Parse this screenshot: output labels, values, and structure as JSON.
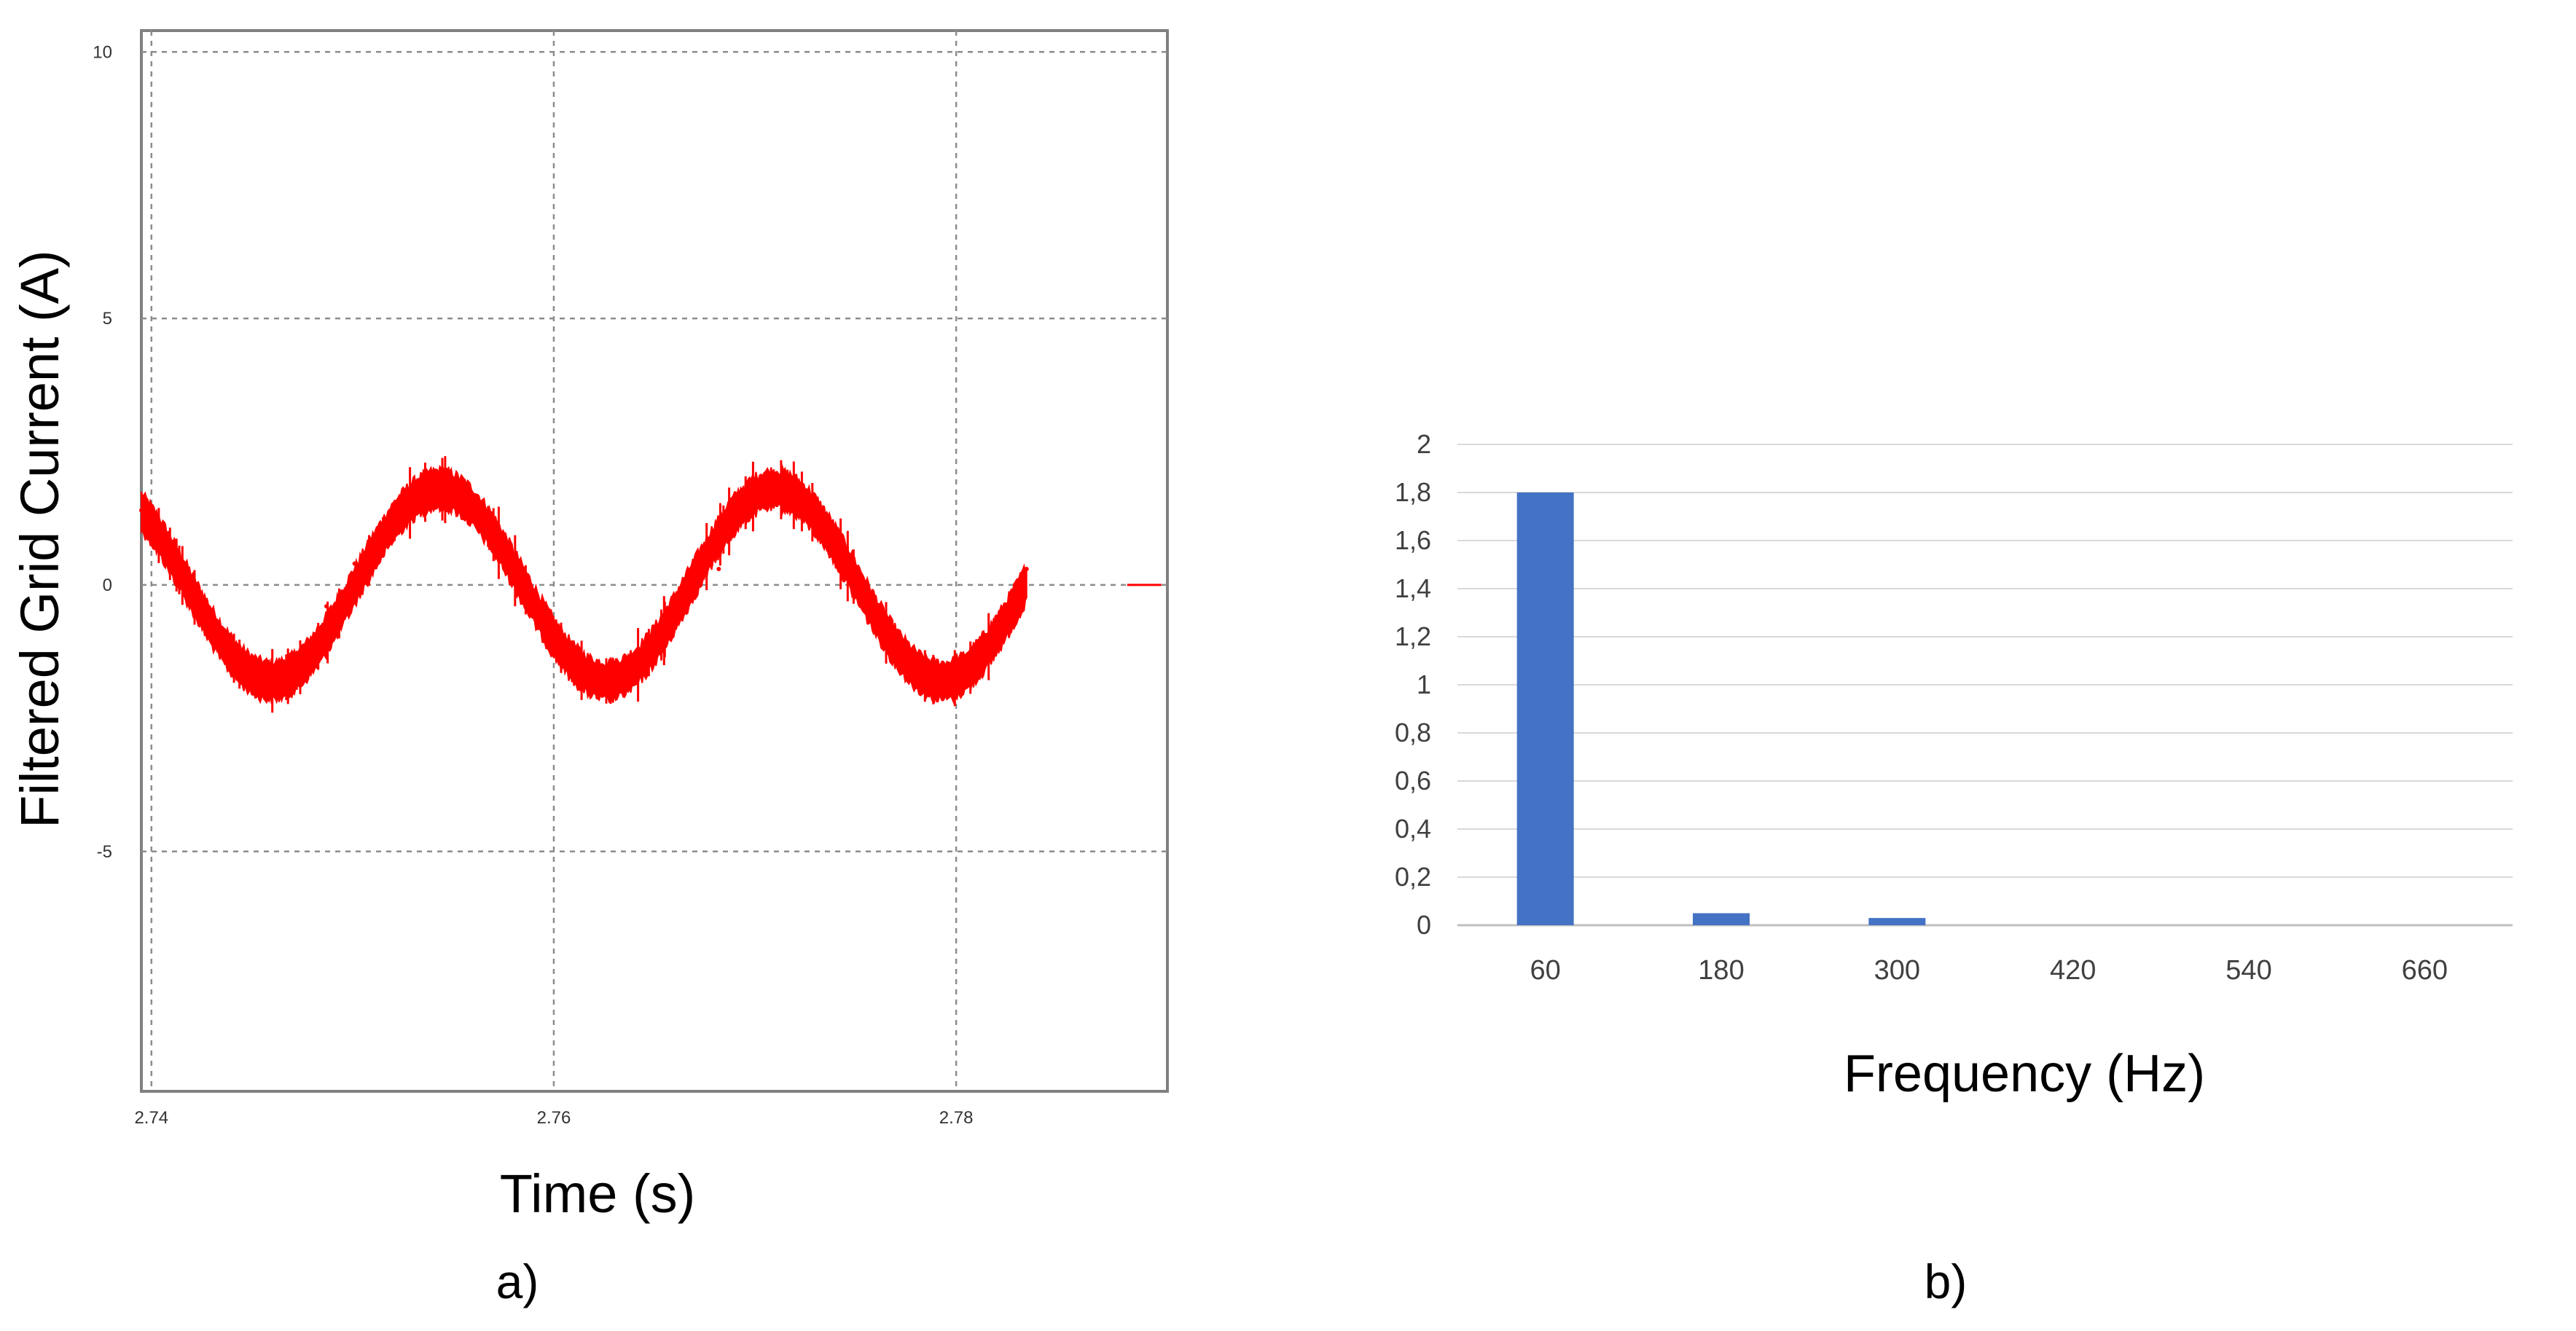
{
  "chart_data": [
    {
      "panel_label": "a)",
      "type": "line",
      "xlabel": "Time (s)",
      "ylabel": "Filtered Grid Current (A)",
      "xlim": [
        2.7395,
        2.7905
      ],
      "ylim": [
        -9.5,
        10.4
      ],
      "x_ticks": [
        2.74,
        2.76,
        2.78
      ],
      "x_tick_labels": [
        "2.74",
        "2.76",
        "2.78"
      ],
      "y_ticks": [
        10,
        5,
        0,
        -5
      ],
      "y_tick_labels": [
        "10",
        "5",
        "0",
        "-5"
      ],
      "grid": true,
      "grid_style": "dashed",
      "series": [
        {
          "color": "#ff0000",
          "waveform": "sine",
          "amplitude": 1.8,
          "frequency_hz": 60,
          "first_peak_time": 2.7543,
          "ripple_band": 0.7,
          "x_start": 2.7395,
          "x_end": 2.7835,
          "x": [
            2.7395,
            2.7418,
            2.7445,
            2.746,
            2.7487,
            2.7501,
            2.7515,
            2.7543,
            2.7571,
            2.7584,
            2.7598,
            2.7626,
            2.764,
            2.7654,
            2.7682,
            2.7709,
            2.7737,
            2.7751,
            2.7765,
            2.7792,
            2.782,
            2.7835
          ],
          "y": [
            1.4,
            0.0,
            -1.8,
            -1.6,
            -0.4,
            0.4,
            1.1,
            1.8,
            1.1,
            0.3,
            -0.6,
            -1.8,
            -1.6,
            -1.1,
            0.3,
            1.8,
            0.6,
            -0.1,
            -0.9,
            -1.8,
            -0.6,
            0.3
          ]
        }
      ]
    },
    {
      "panel_label": "b)",
      "type": "bar",
      "xlabel": "Frequency (Hz)",
      "ylabel": "",
      "categories": [
        "60",
        "180",
        "300",
        "420",
        "540",
        "660"
      ],
      "values": [
        1.8,
        0.05,
        0.03,
        0,
        0,
        0
      ],
      "ylim": [
        0,
        2
      ],
      "y_ticks": [
        0,
        0.2,
        0.4,
        0.6,
        0.8,
        1,
        1.2,
        1.4,
        1.6,
        1.8,
        2
      ],
      "y_tick_labels": [
        "0",
        "0,2",
        "0,4",
        "0,6",
        "0,8",
        "1",
        "1,2",
        "1,4",
        "1,6",
        "1,8",
        "2"
      ],
      "bar_color": "#4472c4",
      "grid": true
    }
  ]
}
